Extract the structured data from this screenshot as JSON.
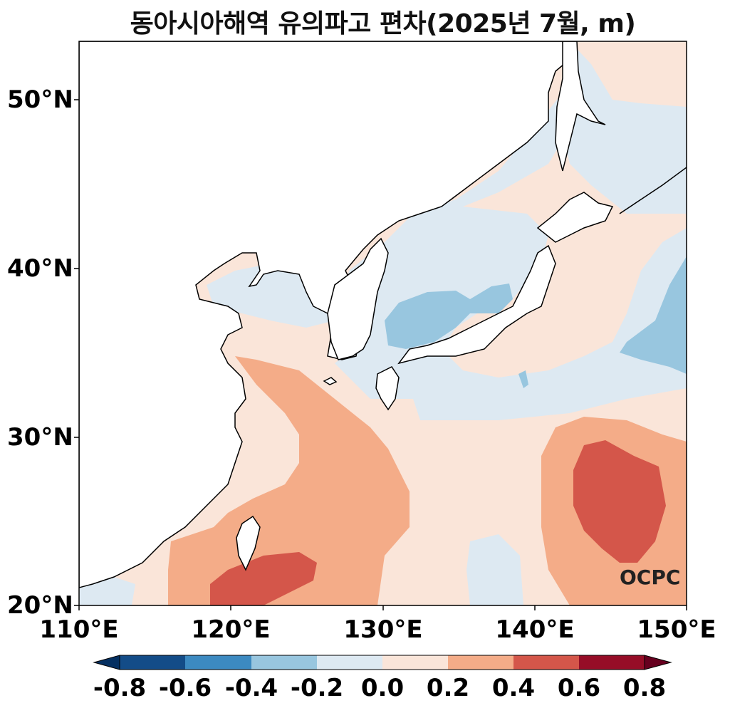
{
  "title": "동아시아해역 유의파고 편차(2025년 7월, m)",
  "chart_data": {
    "type": "heatmap",
    "title": "동아시아해역 유의파고 편차(2025년 7월, m)",
    "lon_range": [
      110,
      150
    ],
    "lat_range": [
      20,
      53.4
    ],
    "lat_ticks": [
      "50°N",
      "40°N",
      "30°N",
      "20°N"
    ],
    "lon_ticks": [
      "110°E",
      "120°E",
      "130°E",
      "140°E",
      "150°E"
    ],
    "colorbar": {
      "ticks": [
        "-0.8",
        "-0.6",
        "-0.4",
        "-0.2",
        "0.0",
        "0.2",
        "0.4",
        "0.6",
        "0.8"
      ],
      "levels": [
        -0.8,
        -0.6,
        -0.4,
        -0.2,
        0.0,
        0.2,
        0.4,
        0.6,
        0.8
      ],
      "colors": [
        "#053061",
        "#134c88",
        "#3c8ac1",
        "#98c6df",
        "#dde9f2",
        "#fae5d9",
        "#f4ac88",
        "#d4564a",
        "#960d27",
        "#67001f"
      ],
      "extend": "both"
    }
  },
  "logo": "OCPC"
}
